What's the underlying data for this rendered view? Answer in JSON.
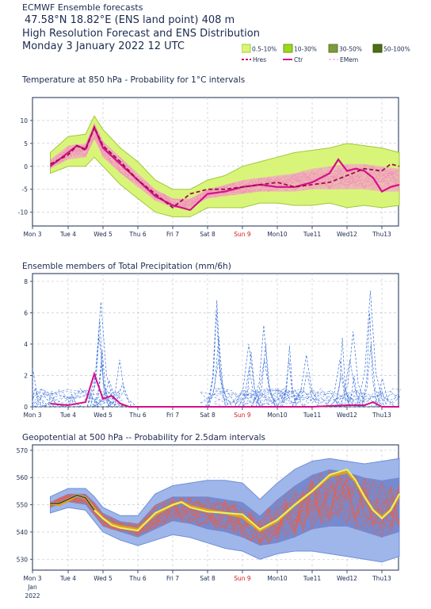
{
  "header": {
    "line1": "ECMWF Ensemble forecasts",
    "line2": "47.58°N 18.82°E (ENS land point) 408 m",
    "line3": "High Resolution Forecast and ENS Distribution",
    "line4": "Monday  3 January 2022 12 UTC"
  },
  "legend": {
    "prob_items": [
      {
        "label": "0.5-10%",
        "color": "#d8f57a",
        "border": "#a3c63b"
      },
      {
        "label": "10-30%",
        "color": "#9ed81a",
        "border": "#6a9a12"
      },
      {
        "label": "30-50%",
        "color": "#7e9a3c",
        "border": "#5a7a2a"
      },
      {
        "label": "50-100%",
        "color": "#4f6d13",
        "border": "#3a520e"
      }
    ],
    "line_items": [
      {
        "label": "Hres",
        "color": "#c0135a",
        "style": "dashed"
      },
      {
        "label": "Ctr",
        "color": "#d4108a",
        "style": "solid"
      },
      {
        "label": "EMem",
        "color": "#f090b8",
        "style": "dashed"
      }
    ]
  },
  "x_axis": {
    "ticks": [
      "Mon 3",
      "Tue 4",
      "Wed 5",
      "Thu 6",
      "Fri 7",
      "Sat 8",
      "Sun 9",
      "Mon10",
      "Tue11",
      "Wed12",
      "Thu13"
    ],
    "highlight_tick": "Sun 9",
    "highlight_color": "#d21a1a",
    "sub_labels": [
      "Jan",
      "2022"
    ]
  },
  "chart_data": [
    {
      "type": "area",
      "title": "Temperature at 850 hPa - Probability for 1°C intervals",
      "ylim": [
        -13,
        15
      ],
      "yticks": [
        -10,
        -5,
        0,
        5,
        10
      ],
      "grid": true,
      "x_unit": "days since Mon 3 00 UTC",
      "series": [
        {
          "name": "Hres",
          "x": [
            0.5,
            1.0,
            1.25,
            1.5,
            1.75,
            2.0,
            2.5,
            3.0,
            3.5,
            3.75,
            4.0,
            4.5,
            5.0,
            5.5,
            6.0,
            6.5,
            7.0,
            7.5,
            8.0,
            8.5,
            9.0,
            9.5,
            10.0,
            10.25,
            10.5
          ],
          "values": [
            0.5,
            2.5,
            4.5,
            3.5,
            8.5,
            4.5,
            1,
            -3,
            -6,
            -7.5,
            -9,
            -6,
            -5,
            -5,
            -4.5,
            -4,
            -3.5,
            -4.5,
            -4,
            -3.5,
            -2,
            -0.5,
            -1,
            0.5,
            0
          ]
        },
        {
          "name": "Ctr",
          "x": [
            0.5,
            1.0,
            1.25,
            1.5,
            1.75,
            2.0,
            2.5,
            3.0,
            3.5,
            4.0,
            4.5,
            5.0,
            5.5,
            6.0,
            6.5,
            7.0,
            7.5,
            8.0,
            8.5,
            8.75,
            9.0,
            9.25,
            9.5,
            9.75,
            10.0,
            10.25,
            10.5
          ],
          "values": [
            0,
            3,
            4.5,
            3.8,
            8.5,
            4,
            0.5,
            -3,
            -6.5,
            -8.5,
            -9.5,
            -6,
            -5.5,
            -4.5,
            -4,
            -4.5,
            -4.5,
            -3.5,
            -1.5,
            1.5,
            -1,
            -0.5,
            -1,
            -2.5,
            -5.5,
            -4.5,
            -4
          ]
        }
      ],
      "prob_band": {
        "x": [
          0.5,
          1.0,
          1.5,
          1.75,
          2.0,
          2.5,
          3.0,
          3.5,
          4.0,
          4.5,
          5.0,
          5.5,
          6.0,
          6.5,
          7.0,
          7.5,
          8.0,
          8.5,
          9.0,
          9.5,
          10.0,
          10.5
        ],
        "outer_low": [
          -1.5,
          0,
          0,
          2,
          0,
          -4,
          -7,
          -10,
          -11,
          -11,
          -9,
          -9,
          -9,
          -8,
          -8,
          -8.5,
          -8.5,
          -8,
          -9,
          -8.5,
          -9,
          -8.5
        ],
        "outer_high": [
          3,
          6.5,
          7,
          11,
          8,
          4,
          1,
          -3,
          -5,
          -5,
          -3,
          -2,
          0,
          1,
          2,
          3,
          3.5,
          4,
          5,
          4.5,
          4,
          3
        ],
        "inner_low": [
          -0.5,
          1.5,
          2,
          6,
          2,
          -1.5,
          -4.5,
          -7.5,
          -9,
          -9,
          -7,
          -6.5,
          -6,
          -5.5,
          -5.5,
          -5.5,
          -5,
          -5,
          -5,
          -5,
          -5.5,
          -5.5
        ],
        "inner_high": [
          1.5,
          4.5,
          5,
          9.5,
          5.5,
          2,
          -1.5,
          -5,
          -7,
          -7,
          -5,
          -4,
          -3,
          -2.5,
          -2,
          -1.5,
          -0.5,
          0,
          0.5,
          0.5,
          0,
          -0.5
        ]
      }
    },
    {
      "type": "line",
      "title": "Ensemble members of Total Precipitation (mm/6h)",
      "ylim": [
        0,
        8.5
      ],
      "yticks": [
        0,
        2,
        4,
        6,
        8
      ],
      "grid": true,
      "peaks": [
        {
          "x": 0.05,
          "values": [
            2.5,
            1.2
          ]
        },
        {
          "x": 0.25,
          "values": [
            0.6,
            0.3
          ]
        },
        {
          "x": 0.55,
          "values": [
            1.0,
            0.4
          ]
        },
        {
          "x": 1.05,
          "values": [
            0.8,
            0.5
          ]
        },
        {
          "x": 1.95,
          "values": [
            6.7,
            5.5,
            4.5,
            3.6,
            2.8
          ]
        },
        {
          "x": 2.25,
          "values": [
            1.7,
            0.8
          ]
        },
        {
          "x": 2.55,
          "values": [
            3.0,
            1.5
          ]
        },
        {
          "x": 5.25,
          "values": [
            6.8,
            6.2,
            4.5,
            3.0
          ]
        },
        {
          "x": 6.25,
          "values": [
            4.0,
            3.5,
            2.5
          ]
        },
        {
          "x": 6.65,
          "values": [
            5.2,
            4.0,
            3.0
          ]
        },
        {
          "x": 7.4,
          "values": [
            3.9,
            3.0
          ]
        },
        {
          "x": 7.8,
          "values": [
            3.3,
            2.2
          ]
        },
        {
          "x": 8.85,
          "values": [
            4.4,
            3.0,
            2.0
          ]
        },
        {
          "x": 9.15,
          "values": [
            4.8,
            3.0,
            2.0
          ]
        },
        {
          "x": 9.65,
          "values": [
            7.4,
            6.0,
            4.0
          ]
        },
        {
          "x": 10.05,
          "values": [
            1.8,
            1.2
          ]
        }
      ],
      "ctr": {
        "x": [
          0.5,
          1.0,
          1.5,
          1.75,
          2.0,
          2.25,
          2.5,
          2.75,
          3.0,
          5.0,
          8.0,
          9.0,
          9.5,
          9.75,
          10.0,
          10.5
        ],
        "values": [
          0.2,
          0.1,
          0.3,
          2.1,
          0.5,
          0.7,
          0.2,
          0,
          0,
          0,
          0,
          0.1,
          0.1,
          0.3,
          0,
          0
        ]
      }
    },
    {
      "type": "area",
      "title": "Geopotential at 500 hPa -- Probability for 2.5dam intervals",
      "ylim": [
        526,
        572
      ],
      "yticks": [
        530,
        540,
        550,
        560,
        570
      ],
      "grid": true,
      "series": [
        {
          "name": "Hres",
          "x": [
            0.5,
            0.75,
            1.0,
            1.25,
            1.5,
            1.75,
            2.0,
            2.25,
            2.5,
            3.0,
            3.5,
            4.0,
            4.25,
            4.5,
            5.0,
            5.5,
            6.0,
            6.5,
            7.0,
            7.5,
            8.0,
            8.5,
            9.0,
            9.25,
            9.5,
            9.75,
            10.0,
            10.25,
            10.5
          ],
          "values": [
            550.5,
            550.5,
            552,
            553.5,
            552.5,
            548,
            545,
            542.5,
            541.5,
            540.5,
            547,
            550,
            551,
            549,
            547.5,
            547,
            546.5,
            541,
            544.5,
            550,
            555,
            561,
            563,
            559,
            553,
            548,
            545,
            548,
            554
          ]
        },
        {
          "name": "Ctr",
          "x": [
            0.5,
            0.75,
            1.0,
            1.25,
            1.5,
            1.75,
            2.0,
            2.25,
            2.5,
            3.0,
            3.5,
            4.0,
            4.25,
            4.5,
            5.0,
            5.5,
            6.0,
            6.5,
            7.0,
            7.5,
            8.0,
            8.5,
            9.0,
            9.25,
            9.5,
            9.75,
            10.0,
            10.25,
            10.5
          ],
          "values": [
            550.5,
            550,
            551.5,
            553.5,
            552.5,
            548.5,
            545,
            543,
            542,
            541,
            546.5,
            550,
            551,
            549.5,
            548,
            547,
            545.5,
            540.5,
            544,
            550,
            555,
            560.5,
            562,
            558.5,
            553,
            548,
            545.5,
            548,
            553.5
          ]
        }
      ],
      "prob_band": {
        "x": [
          0.5,
          1.0,
          1.5,
          1.75,
          2.0,
          2.5,
          3.0,
          3.5,
          4.0,
          4.5,
          5.0,
          5.5,
          6.0,
          6.5,
          7.0,
          7.5,
          8.0,
          8.5,
          9.0,
          9.5,
          10.0,
          10.5
        ],
        "outer_low": [
          547,
          549,
          548,
          544,
          540,
          537,
          535,
          537,
          539,
          538,
          536,
          534,
          533,
          530,
          532,
          533,
          533,
          532,
          531,
          530,
          529,
          531
        ],
        "outer_high": [
          553,
          556,
          556,
          553,
          549,
          546,
          546,
          554,
          557,
          558,
          559,
          559,
          558,
          552,
          558,
          563,
          566,
          567,
          566,
          565,
          566,
          567
        ],
        "inner_low": [
          549,
          551,
          550,
          546,
          542,
          540,
          538,
          541,
          544,
          543,
          541,
          540,
          538,
          535,
          536,
          538,
          541,
          542,
          542,
          540,
          538,
          540
        ],
        "inner_high": [
          551,
          554,
          554,
          551,
          547,
          544,
          543,
          550,
          553,
          553,
          553,
          552,
          551,
          546,
          552,
          557,
          561,
          563,
          562,
          560,
          559,
          560
        ]
      }
    }
  ]
}
